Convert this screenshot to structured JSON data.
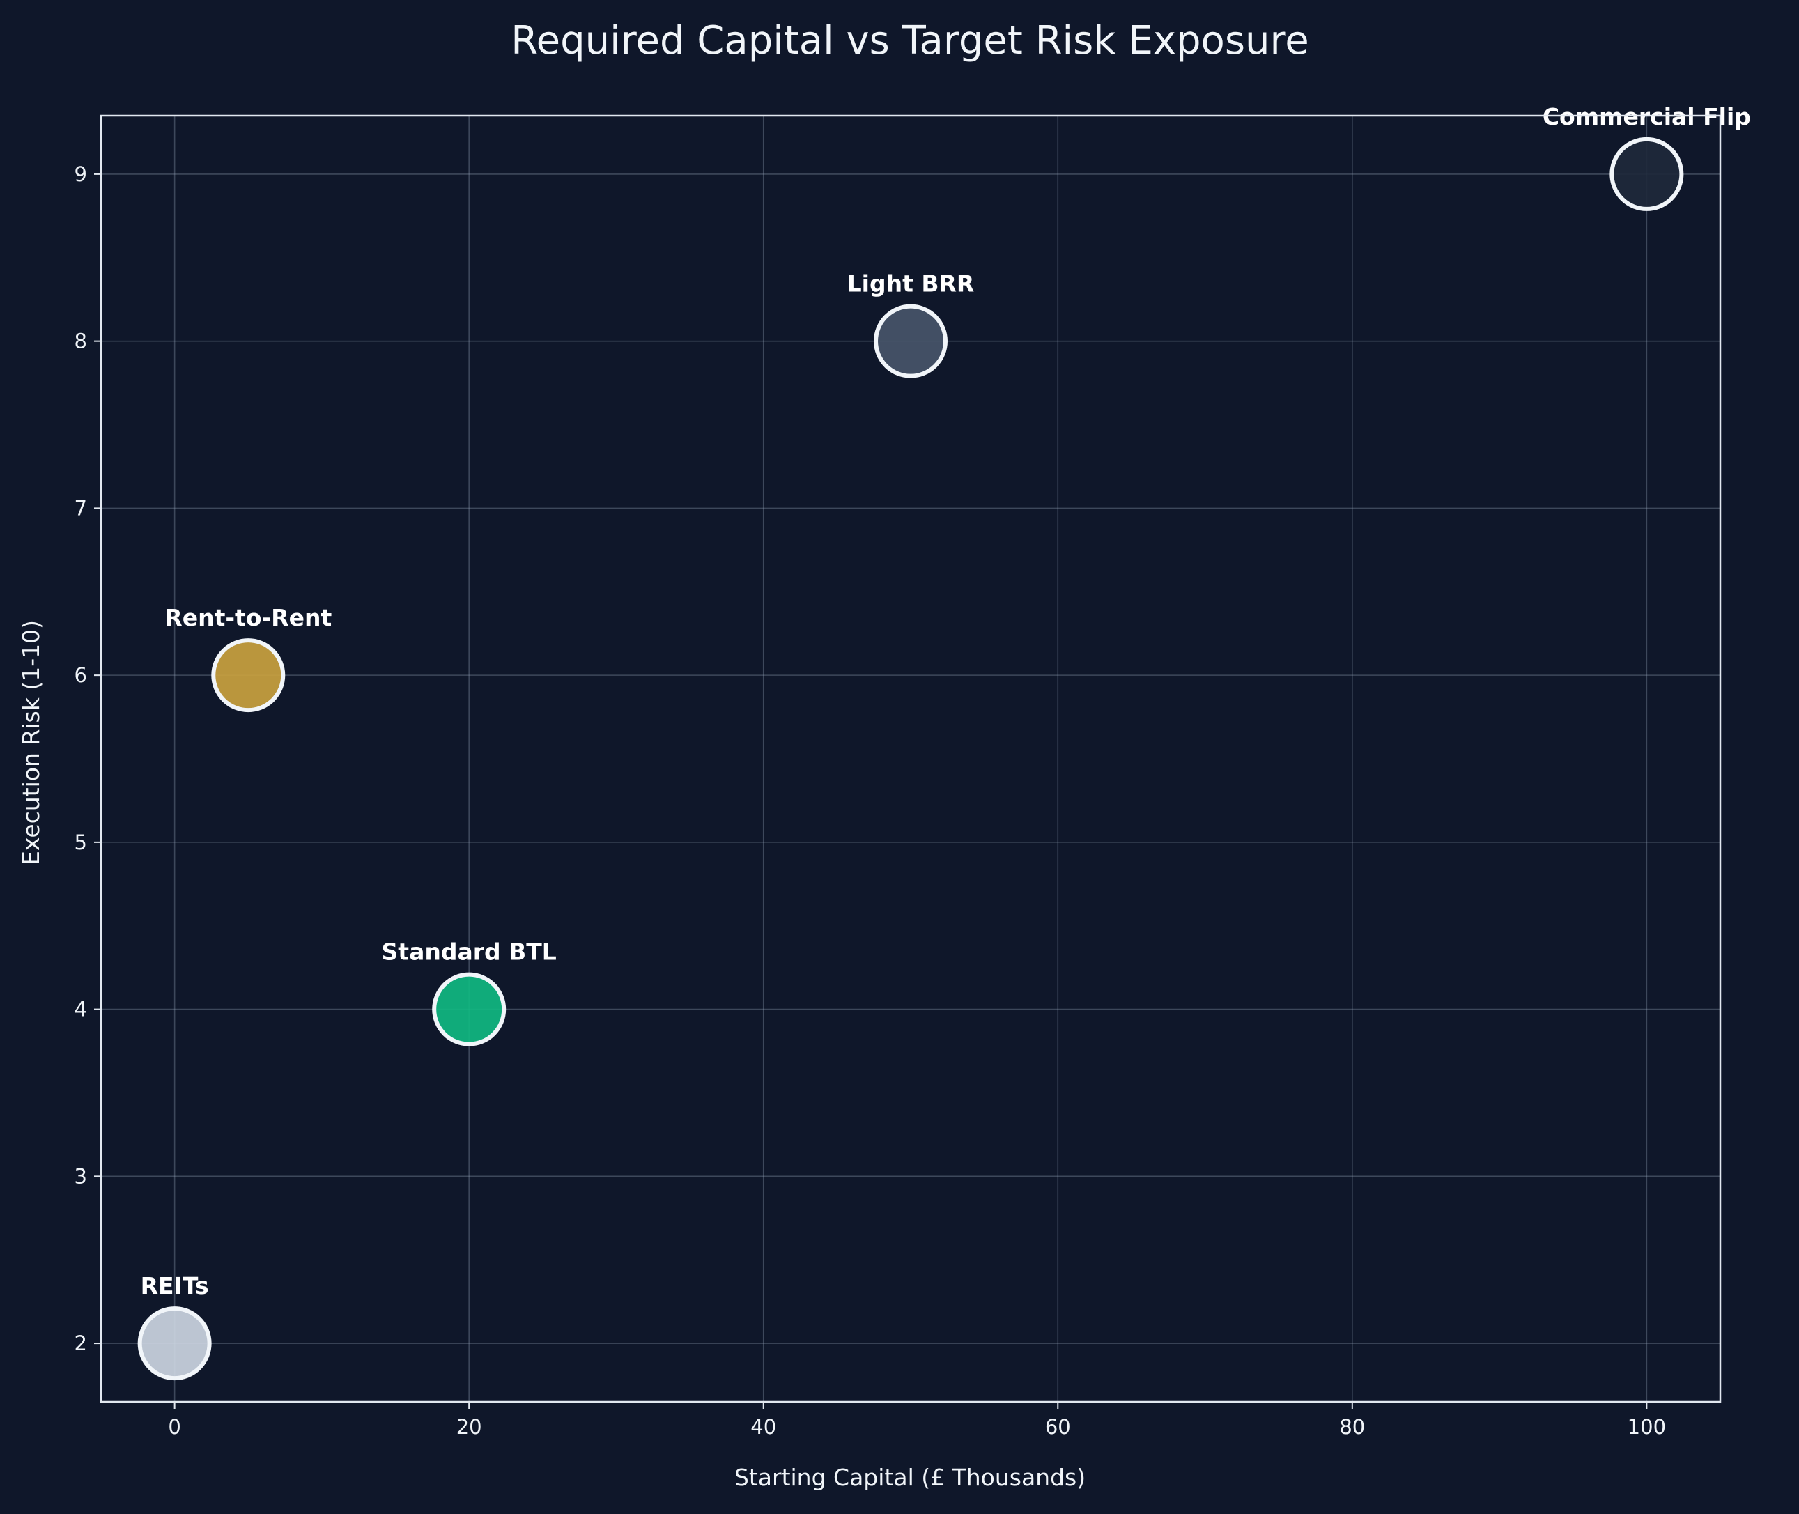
{
  "colors": {
    "background": "#0f172a",
    "axis": "#e2e8f0",
    "grid": "#94a3b8",
    "text": "#f1f5f9",
    "marker_edge": "#f1f5f9"
  },
  "chart_data": {
    "type": "scatter",
    "title": "Required Capital vs Target Risk Exposure",
    "xlabel": "Starting Capital (£ Thousands)",
    "ylabel": "Execution Risk (1-10)",
    "xlim": [
      -5,
      105
    ],
    "ylim": [
      1.65,
      9.35
    ],
    "x_ticks": [
      0,
      20,
      40,
      60,
      80,
      100
    ],
    "y_ticks": [
      2,
      3,
      4,
      5,
      6,
      7,
      8,
      9
    ],
    "grid": true,
    "legend": "none",
    "points": [
      {
        "label": "REITs",
        "x": 0,
        "y": 2,
        "color": "#cbd5e1"
      },
      {
        "label": "Standard BTL",
        "x": 20,
        "y": 4,
        "color": "#10b981"
      },
      {
        "label": "Rent-to-Rent",
        "x": 5,
        "y": 6,
        "color": "#c9a23f"
      },
      {
        "label": "Light BRR",
        "x": 50,
        "y": 8,
        "color": "#475569"
      },
      {
        "label": "Commercial Flip",
        "x": 100,
        "y": 9,
        "color": "#1e293b"
      }
    ]
  }
}
